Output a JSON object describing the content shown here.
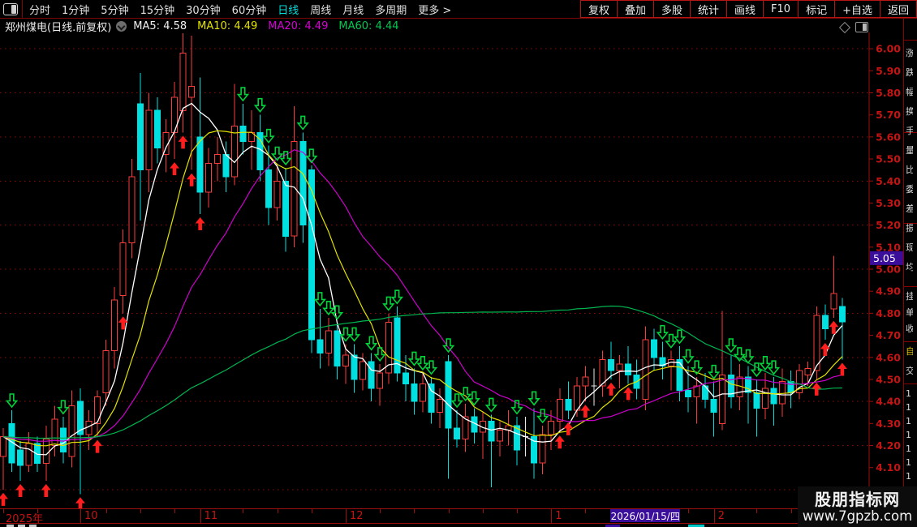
{
  "toolbar": {
    "tabs": [
      "分时",
      "1分钟",
      "5分钟",
      "15分钟",
      "30分钟",
      "60分钟",
      "日线",
      "周线",
      "月线",
      "多周期",
      "更多 >"
    ],
    "active_index": 6,
    "buttons": [
      "复权",
      "叠加",
      "多股",
      "统计",
      "画线",
      "F10",
      "标记",
      "+自选",
      "返回"
    ]
  },
  "legend": {
    "title": "郑州煤电(日线.前复权)",
    "ma_items": [
      {
        "label": "MA5:",
        "value": "4.58",
        "color": "#f0f0f0"
      },
      {
        "label": "MA10:",
        "value": "4.49",
        "color": "#e2e200"
      },
      {
        "label": "MA20:",
        "value": "4.49",
        "color": "#d400d4"
      },
      {
        "label": "MA60:",
        "value": "4.44",
        "color": "#00c853"
      }
    ]
  },
  "colors": {
    "background": "#000000",
    "grid": "#8e0d0d",
    "axis_text": "#c41414",
    "border_red": "#9b0f0f",
    "candle_up": "#fa3c3c",
    "candle_down": "#00e0e0",
    "doji": "#e8e8e8",
    "buy_arrow": "#ff1e1e",
    "sell_arrow": "#00d23c",
    "tag_bg": "#3a0d9a",
    "active_tab": "#00dede",
    "ma5": "#ffffff",
    "ma10": "#e2e200",
    "ma20": "#cc00cc",
    "ma60": "#00b450"
  },
  "chart_data": {
    "type": "candlestick",
    "symbol": "郑州煤电",
    "period": "日线",
    "adjust": "前复权",
    "last_price_tag": "5.05",
    "y_axis": {
      "price_top": 6.074,
      "price_bottom": 3.915,
      "tick_labels": [
        "6.00",
        "5.90",
        "5.80",
        "5.70",
        "5.60",
        "5.50",
        "5.40",
        "5.30",
        "5.20",
        "5.10",
        "5.00",
        "4.90",
        "4.80",
        "4.70",
        "4.60",
        "4.50",
        "4.40",
        "4.30",
        "4.20",
        "4.10"
      ],
      "grid_levels": [
        6.0,
        5.8,
        5.6,
        5.4,
        5.2,
        5.0,
        4.8,
        4.6,
        4.4,
        4.2,
        4.0
      ]
    },
    "ma_windows": [
      {
        "name": "MA5",
        "window": 5,
        "color": "#ffffff"
      },
      {
        "name": "MA10",
        "window": 10,
        "color": "#e2e200"
      },
      {
        "name": "MA20",
        "window": 20,
        "color": "#cc00cc"
      },
      {
        "name": "MA60",
        "window": 60,
        "color": "#00b450"
      }
    ],
    "signals_legend": {
      "b": "red-up-arrow-buy",
      "s": "green-down-arrow-sell"
    },
    "candles": [
      [
        4.15,
        4.28,
        4.0,
        4.24,
        "b"
      ],
      [
        4.3,
        4.36,
        4.08,
        4.12,
        "s"
      ],
      [
        4.18,
        4.22,
        4.04,
        4.11,
        "b"
      ],
      [
        4.11,
        4.26,
        4.08,
        4.21,
        ""
      ],
      [
        4.21,
        4.24,
        4.08,
        4.12,
        ""
      ],
      [
        4.12,
        4.29,
        4.04,
        4.23,
        "b"
      ],
      [
        4.2,
        4.38,
        4.15,
        4.32,
        ""
      ],
      [
        4.28,
        4.33,
        4.12,
        4.17,
        "s"
      ],
      [
        4.15,
        4.45,
        4.1,
        4.38,
        ""
      ],
      [
        4.4,
        4.46,
        3.98,
        4.25,
        "b"
      ],
      [
        4.25,
        4.36,
        4.18,
        4.31,
        ""
      ],
      [
        4.3,
        4.45,
        4.24,
        4.42,
        "b"
      ],
      [
        4.44,
        4.68,
        4.38,
        4.63,
        ""
      ],
      [
        4.63,
        4.92,
        4.55,
        4.86,
        ""
      ],
      [
        4.88,
        5.18,
        4.8,
        5.12,
        "b"
      ],
      [
        5.12,
        5.5,
        5.05,
        5.42,
        ""
      ],
      [
        5.75,
        5.89,
        5.22,
        5.45,
        ""
      ],
      [
        5.45,
        5.8,
        5.35,
        5.72,
        ""
      ],
      [
        5.72,
        5.78,
        5.48,
        5.55,
        ""
      ],
      [
        5.52,
        5.68,
        5.44,
        5.62,
        ""
      ],
      [
        5.62,
        5.85,
        5.5,
        5.78,
        "b"
      ],
      [
        5.72,
        6.07,
        5.62,
        5.98,
        "b"
      ],
      [
        5.78,
        6.06,
        5.45,
        5.83,
        "b"
      ],
      [
        5.6,
        5.87,
        5.25,
        5.35,
        "b"
      ],
      [
        5.35,
        5.55,
        5.28,
        5.48,
        ""
      ],
      [
        5.48,
        5.6,
        5.4,
        5.52,
        ""
      ],
      [
        5.52,
        5.58,
        5.35,
        5.42,
        ""
      ],
      [
        5.42,
        5.84,
        5.38,
        5.65,
        ""
      ],
      [
        5.65,
        5.75,
        5.52,
        5.58,
        "s"
      ],
      [
        5.58,
        5.72,
        5.45,
        5.62,
        ""
      ],
      [
        5.62,
        5.7,
        5.4,
        5.45,
        "s"
      ],
      [
        5.45,
        5.56,
        5.2,
        5.28,
        "s"
      ],
      [
        5.28,
        5.48,
        5.22,
        5.4,
        "s"
      ],
      [
        5.4,
        5.46,
        5.08,
        5.15,
        "s"
      ],
      [
        5.15,
        5.74,
        5.1,
        5.58,
        ""
      ],
      [
        5.58,
        5.62,
        5.12,
        5.2,
        "s"
      ],
      [
        5.45,
        5.47,
        4.62,
        4.68,
        "s"
      ],
      [
        4.68,
        4.82,
        4.55,
        4.62,
        "s"
      ],
      [
        4.62,
        4.78,
        4.56,
        4.72,
        "s"
      ],
      [
        4.72,
        4.76,
        4.5,
        4.56,
        "s"
      ],
      [
        4.56,
        4.66,
        4.48,
        4.61,
        "s"
      ],
      [
        4.61,
        4.66,
        4.44,
        4.5,
        "s"
      ],
      [
        4.5,
        4.62,
        4.45,
        4.58,
        ""
      ],
      [
        4.58,
        4.62,
        4.4,
        4.46,
        "s"
      ],
      [
        4.46,
        4.57,
        4.38,
        4.53,
        "s"
      ],
      [
        4.53,
        4.8,
        4.48,
        4.76,
        "s"
      ],
      [
        4.78,
        4.83,
        4.49,
        4.53,
        "s"
      ],
      [
        4.53,
        4.61,
        4.4,
        4.48,
        ""
      ],
      [
        4.48,
        4.55,
        4.34,
        4.4,
        "s"
      ],
      [
        4.4,
        4.53,
        4.35,
        4.48,
        "s"
      ],
      [
        4.48,
        4.51,
        4.3,
        4.35,
        "s"
      ],
      [
        4.35,
        4.46,
        4.28,
        4.41,
        ""
      ],
      [
        4.58,
        4.61,
        4.05,
        4.28,
        "s"
      ],
      [
        4.28,
        4.36,
        4.19,
        4.23,
        "s"
      ],
      [
        4.23,
        4.39,
        4.17,
        4.33,
        "s"
      ],
      [
        4.33,
        4.37,
        4.21,
        4.26,
        "s"
      ],
      [
        4.26,
        4.35,
        4.14,
        4.31,
        ""
      ],
      [
        4.31,
        4.34,
        4.01,
        4.22,
        "s"
      ],
      [
        4.22,
        4.31,
        4.15,
        4.27,
        ""
      ],
      [
        4.27,
        4.36,
        4.2,
        4.29,
        ""
      ],
      [
        4.29,
        4.33,
        4.11,
        4.18,
        "s"
      ],
      [
        4.24,
        4.33,
        4.15,
        4.24,
        ""
      ],
      [
        4.24,
        4.37,
        4.05,
        4.12,
        "s"
      ],
      [
        4.12,
        4.29,
        4.07,
        4.25,
        "s"
      ],
      [
        4.25,
        4.36,
        4.18,
        4.31,
        ""
      ],
      [
        4.31,
        4.46,
        4.26,
        4.41,
        "b"
      ],
      [
        4.41,
        4.49,
        4.32,
        4.36,
        "b"
      ],
      [
        4.36,
        4.51,
        4.33,
        4.47,
        ""
      ],
      [
        4.47,
        4.56,
        4.4,
        4.51,
        "b"
      ],
      [
        4.47,
        4.55,
        4.38,
        4.47,
        ""
      ],
      [
        4.47,
        4.63,
        4.42,
        4.59,
        ""
      ],
      [
        4.59,
        4.67,
        4.5,
        4.54,
        "b"
      ],
      [
        4.54,
        4.61,
        4.46,
        4.57,
        ""
      ],
      [
        4.57,
        4.65,
        4.48,
        4.52,
        "b"
      ],
      [
        4.52,
        4.59,
        4.41,
        4.46,
        ""
      ],
      [
        4.41,
        4.74,
        4.36,
        4.68,
        ""
      ],
      [
        4.68,
        4.73,
        4.54,
        4.6,
        ""
      ],
      [
        4.6,
        4.67,
        4.5,
        4.56,
        "s"
      ],
      [
        4.56,
        4.63,
        4.45,
        4.59,
        "s"
      ],
      [
        4.59,
        4.65,
        4.4,
        4.45,
        "s"
      ],
      [
        4.45,
        4.56,
        4.35,
        4.42,
        "s"
      ],
      [
        4.42,
        4.51,
        4.3,
        4.47,
        "s"
      ],
      [
        4.47,
        4.53,
        4.37,
        4.41,
        ""
      ],
      [
        4.41,
        4.49,
        4.24,
        4.35,
        "s"
      ],
      [
        4.3,
        4.81,
        4.27,
        4.52,
        ""
      ],
      [
        4.52,
        4.61,
        4.37,
        4.42,
        "s"
      ],
      [
        4.42,
        4.57,
        4.36,
        4.51,
        "s"
      ],
      [
        4.51,
        4.56,
        4.3,
        4.44,
        "s"
      ],
      [
        4.44,
        4.5,
        4.24,
        4.37,
        "s"
      ],
      [
        4.37,
        4.53,
        4.32,
        4.46,
        "s"
      ],
      [
        4.46,
        4.51,
        4.29,
        4.39,
        "s"
      ],
      [
        4.39,
        4.55,
        4.33,
        4.49,
        ""
      ],
      [
        4.49,
        4.54,
        4.37,
        4.44,
        ""
      ],
      [
        4.44,
        4.57,
        4.41,
        4.54,
        ""
      ],
      [
        4.52,
        4.58,
        4.47,
        4.55,
        ""
      ],
      [
        4.54,
        4.83,
        4.5,
        4.79,
        "b"
      ],
      [
        4.79,
        4.84,
        4.68,
        4.73,
        "b"
      ],
      [
        4.82,
        5.06,
        4.78,
        4.89,
        "b"
      ],
      [
        4.83,
        4.87,
        4.59,
        4.76,
        "b"
      ]
    ]
  },
  "bottom_axis": {
    "year_label": "2025年",
    "months": [
      {
        "label": "10",
        "index": 9
      },
      {
        "label": "11",
        "index": 23
      },
      {
        "label": "12",
        "index": 40
      },
      {
        "label": "1",
        "index": 64
      },
      {
        "label": "2",
        "index": 83
      }
    ],
    "date_tag": {
      "text": "2026/01/15/四",
      "index": 75
    }
  },
  "right_strip": {
    "upper_fragments": [
      "涨",
      "跌",
      "幅",
      "换",
      "手",
      "量",
      "比",
      "委",
      "差",
      "振",
      "现",
      "均"
    ],
    "mid_fragments": [
      "挂",
      "单",
      "收"
    ],
    "highlight_fragment": "自",
    "tail_fragment": "交",
    "list_digits": [
      "1",
      "1",
      "1",
      "1",
      "1",
      "1",
      "1",
      "1"
    ]
  },
  "watermark": {
    "line1": "股朋指标网",
    "line2": "www.7gpzb.com"
  }
}
